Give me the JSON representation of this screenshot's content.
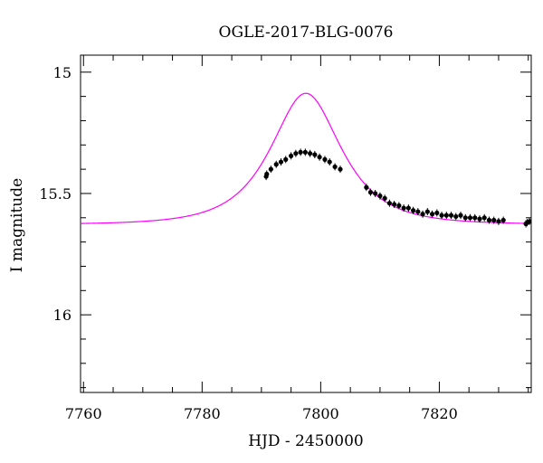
{
  "chart_data": {
    "type": "scatter",
    "title": "OGLE-2017-BLG-0076",
    "xlabel": "HJD - 2450000",
    "ylabel": "I magnitude",
    "xlim": [
      7759.5,
      7835.5
    ],
    "ylim": [
      16.32,
      14.93
    ],
    "y_inverted": true,
    "grid": false,
    "x_ticks": [
      7760,
      7780,
      7800,
      7820
    ],
    "x_tick_labels": [
      "7760",
      "7780",
      "7800",
      "7820"
    ],
    "y_ticks": [
      15,
      15.5,
      16
    ],
    "y_tick_labels": [
      "15",
      "15.5",
      "16"
    ],
    "colors": {
      "model": "#ff00ff",
      "points": "#000000",
      "axes": "#000000"
    },
    "series": [
      {
        "type": "line",
        "function": "microlensing_model",
        "t0": 7797.5,
        "tE": 8.5,
        "u0": 0.72,
        "m_base": 15.628,
        "blend_fraction": 1.0
      },
      {
        "type": "scatter",
        "x": [
          7790.8,
          7790.9,
          7791.6,
          7792.5,
          7793.3,
          7794.1,
          7795.0,
          7795.8,
          7796.6,
          7797.4,
          7798.2,
          7799.0,
          7799.8,
          7800.7,
          7801.5,
          7802.4,
          7803.3,
          7807.7,
          7808.4,
          7809.2,
          7810.0,
          7810.8,
          7811.6,
          7812.4,
          7813.2,
          7814.0,
          7814.8,
          7815.6,
          7816.4,
          7817.2,
          7818.0,
          7818.8,
          7819.6,
          7820.4,
          7821.2,
          7822.0,
          7822.8,
          7823.6,
          7824.4,
          7825.2,
          7826.0,
          7826.8,
          7827.6,
          7828.4,
          7829.2,
          7830.0,
          7830.8,
          7834.6,
          7834.8,
          7835.2
        ],
        "y": [
          15.43,
          15.42,
          15.4,
          15.38,
          15.37,
          15.36,
          15.345,
          15.335,
          15.33,
          15.33,
          15.335,
          15.34,
          15.35,
          15.36,
          15.37,
          15.39,
          15.4,
          15.475,
          15.495,
          15.5,
          15.51,
          15.52,
          15.54,
          15.545,
          15.55,
          15.56,
          15.56,
          15.57,
          15.575,
          15.585,
          15.575,
          15.585,
          15.58,
          15.59,
          15.59,
          15.59,
          15.595,
          15.59,
          15.6,
          15.6,
          15.6,
          15.605,
          15.6,
          15.61,
          15.61,
          15.615,
          15.61,
          15.625,
          15.62,
          15.615
        ]
      }
    ]
  }
}
